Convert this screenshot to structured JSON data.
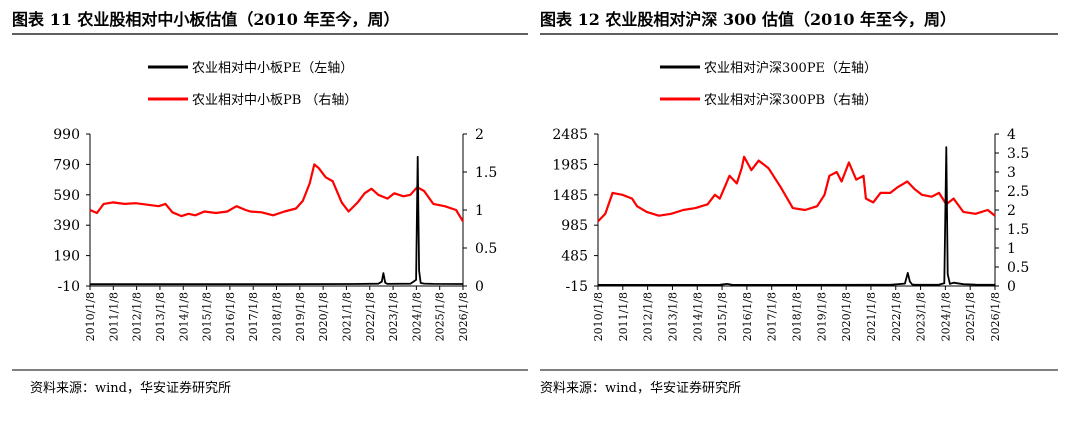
{
  "colors": {
    "pe": "#000000",
    "pb": "#ff0000",
    "rule": "#000000",
    "text": "#000000"
  },
  "charts": [
    {
      "fig_title": "图表 11  农业股相对中小板估值（2010 年至今，周）",
      "source": "资料来源：wind，华安证券研究所",
      "legend": {
        "pe": "农业相对中小板PE（左轴）",
        "pb": "农业相对中小板PB （右轴）"
      },
      "left_ticks": [
        "990",
        "790",
        "590",
        "390",
        "190",
        "-10"
      ],
      "right_ticks": [
        "2",
        "1.5",
        "1",
        "0.5",
        "0"
      ],
      "x_ticks": [
        "2010/1/8",
        "2011/1/8",
        "2012/1/8",
        "2013/1/8",
        "2014/1/8",
        "2015/1/8",
        "2016/1/8",
        "2017/1/8",
        "2018/1/8",
        "2019/1/8",
        "2020/1/8",
        "2021/1/8",
        "2022/1/8",
        "2023/1/8",
        "2024/1/8",
        "2025/1/8",
        "2026/1/8"
      ]
    },
    {
      "fig_title": "图表 12  农业股相对沪深 300 估值（2010 年至今，周）",
      "source": "资料来源：wind，华安证券研究所",
      "legend": {
        "pe": "农业相对沪深300PE（左轴）",
        "pb": "农业相对沪深300PB（右轴）"
      },
      "left_ticks": [
        "2485",
        "1985",
        "1485",
        "985",
        "485",
        "-15"
      ],
      "right_ticks": [
        "4",
        "3.5",
        "3",
        "2.5",
        "2",
        "1.5",
        "1",
        "0.5",
        "0"
      ],
      "x_ticks": [
        "2010/1/8",
        "2011/1/8",
        "2012/1/8",
        "2013/1/8",
        "2014/1/8",
        "2015/1/8",
        "2016/1/8",
        "2017/1/8",
        "2018/1/8",
        "2019/1/8",
        "2020/1/8",
        "2021/1/8",
        "2022/1/8",
        "2023/1/8",
        "2024/1/8",
        "2025/1/8",
        "2026/1/8"
      ]
    }
  ],
  "chart_data": [
    {
      "type": "line",
      "title": "农业股相对中小板估值（2010 年至今，周）",
      "x_range": [
        2010.0,
        2026.3
      ],
      "series": [
        {
          "name": "农业相对中小板PE（左轴）",
          "axis": "left",
          "ylim": [
            -10,
            990
          ],
          "points": [
            [
              2010.0,
              2
            ],
            [
              2018.0,
              2
            ],
            [
              2021.5,
              3
            ],
            [
              2022.6,
              5
            ],
            [
              2022.75,
              18
            ],
            [
              2022.82,
              75
            ],
            [
              2022.9,
              12
            ],
            [
              2023.0,
              4
            ],
            [
              2024.0,
              5
            ],
            [
              2024.25,
              30
            ],
            [
              2024.32,
              840
            ],
            [
              2024.38,
              90
            ],
            [
              2024.45,
              10
            ],
            [
              2024.6,
              6
            ],
            [
              2025.0,
              4
            ],
            [
              2026.3,
              3
            ]
          ]
        },
        {
          "name": "农业相对中小板PB （右轴）",
          "axis": "right",
          "ylim": [
            0,
            2
          ],
          "points": [
            [
              2010.0,
              1.0
            ],
            [
              2010.3,
              0.96
            ],
            [
              2010.6,
              1.08
            ],
            [
              2011.0,
              1.1
            ],
            [
              2011.5,
              1.08
            ],
            [
              2012.0,
              1.09
            ],
            [
              2012.5,
              1.07
            ],
            [
              2013.0,
              1.05
            ],
            [
              2013.3,
              1.08
            ],
            [
              2013.6,
              0.97
            ],
            [
              2014.0,
              0.92
            ],
            [
              2014.3,
              0.95
            ],
            [
              2014.6,
              0.93
            ],
            [
              2015.0,
              0.98
            ],
            [
              2015.5,
              0.96
            ],
            [
              2016.0,
              0.98
            ],
            [
              2016.4,
              1.05
            ],
            [
              2016.8,
              1.0
            ],
            [
              2017.0,
              0.98
            ],
            [
              2017.5,
              0.97
            ],
            [
              2018.0,
              0.93
            ],
            [
              2018.5,
              0.98
            ],
            [
              2019.0,
              1.02
            ],
            [
              2019.3,
              1.12
            ],
            [
              2019.6,
              1.35
            ],
            [
              2019.8,
              1.6
            ],
            [
              2020.0,
              1.55
            ],
            [
              2020.3,
              1.43
            ],
            [
              2020.6,
              1.38
            ],
            [
              2021.0,
              1.1
            ],
            [
              2021.3,
              0.98
            ],
            [
              2021.7,
              1.1
            ],
            [
              2022.0,
              1.22
            ],
            [
              2022.3,
              1.28
            ],
            [
              2022.6,
              1.2
            ],
            [
              2023.0,
              1.15
            ],
            [
              2023.3,
              1.22
            ],
            [
              2023.7,
              1.18
            ],
            [
              2024.0,
              1.2
            ],
            [
              2024.3,
              1.3
            ],
            [
              2024.6,
              1.25
            ],
            [
              2025.0,
              1.08
            ],
            [
              2025.5,
              1.05
            ],
            [
              2026.0,
              1.0
            ],
            [
              2026.3,
              0.85
            ]
          ]
        }
      ],
      "xlabel": "",
      "ylabel": "",
      "legend_position": "top-center",
      "grid": false
    },
    {
      "type": "line",
      "title": "农业股相对沪深 300 估值（2010 年至今，周）",
      "x_range": [
        2010.0,
        2026.3
      ],
      "series": [
        {
          "name": "农业相对沪深300PE（左轴）",
          "axis": "left",
          "ylim": [
            -15,
            2485
          ],
          "points": [
            [
              2010.0,
              3
            ],
            [
              2015.0,
              5
            ],
            [
              2015.3,
              20
            ],
            [
              2015.5,
              5
            ],
            [
              2017.0,
              3
            ],
            [
              2022.0,
              5
            ],
            [
              2022.6,
              25
            ],
            [
              2022.72,
              200
            ],
            [
              2022.8,
              60
            ],
            [
              2022.9,
              10
            ],
            [
              2023.0,
              8
            ],
            [
              2023.5,
              5
            ],
            [
              2024.0,
              8
            ],
            [
              2024.22,
              30
            ],
            [
              2024.3,
              2270
            ],
            [
              2024.36,
              180
            ],
            [
              2024.45,
              20
            ],
            [
              2024.6,
              40
            ],
            [
              2025.0,
              15
            ],
            [
              2025.5,
              8
            ],
            [
              2026.3,
              5
            ]
          ]
        },
        {
          "name": "农业相对沪深300PB（右轴）",
          "axis": "right",
          "ylim": [
            0,
            4
          ],
          "points": [
            [
              2010.0,
              1.7
            ],
            [
              2010.3,
              1.9
            ],
            [
              2010.6,
              2.45
            ],
            [
              2011.0,
              2.4
            ],
            [
              2011.4,
              2.3
            ],
            [
              2011.6,
              2.1
            ],
            [
              2012.0,
              1.95
            ],
            [
              2012.5,
              1.85
            ],
            [
              2013.0,
              1.9
            ],
            [
              2013.5,
              2.0
            ],
            [
              2014.0,
              2.05
            ],
            [
              2014.5,
              2.15
            ],
            [
              2014.8,
              2.4
            ],
            [
              2015.0,
              2.3
            ],
            [
              2015.4,
              2.9
            ],
            [
              2015.7,
              2.7
            ],
            [
              2015.9,
              3.1
            ],
            [
              2016.0,
              3.4
            ],
            [
              2016.3,
              3.05
            ],
            [
              2016.6,
              3.3
            ],
            [
              2017.0,
              3.1
            ],
            [
              2017.5,
              2.6
            ],
            [
              2018.0,
              2.05
            ],
            [
              2018.5,
              2.0
            ],
            [
              2019.0,
              2.1
            ],
            [
              2019.3,
              2.4
            ],
            [
              2019.5,
              2.9
            ],
            [
              2019.8,
              3.0
            ],
            [
              2020.0,
              2.75
            ],
            [
              2020.3,
              3.25
            ],
            [
              2020.6,
              2.8
            ],
            [
              2020.9,
              2.9
            ],
            [
              2021.0,
              2.3
            ],
            [
              2021.3,
              2.2
            ],
            [
              2021.6,
              2.45
            ],
            [
              2022.0,
              2.45
            ],
            [
              2022.3,
              2.6
            ],
            [
              2022.7,
              2.75
            ],
            [
              2023.0,
              2.55
            ],
            [
              2023.3,
              2.4
            ],
            [
              2023.7,
              2.35
            ],
            [
              2024.0,
              2.45
            ],
            [
              2024.3,
              2.15
            ],
            [
              2024.6,
              2.3
            ],
            [
              2025.0,
              1.95
            ],
            [
              2025.5,
              1.9
            ],
            [
              2026.0,
              2.0
            ],
            [
              2026.3,
              1.85
            ]
          ]
        }
      ],
      "xlabel": "",
      "ylabel": "",
      "legend_position": "top-center",
      "grid": false
    }
  ]
}
